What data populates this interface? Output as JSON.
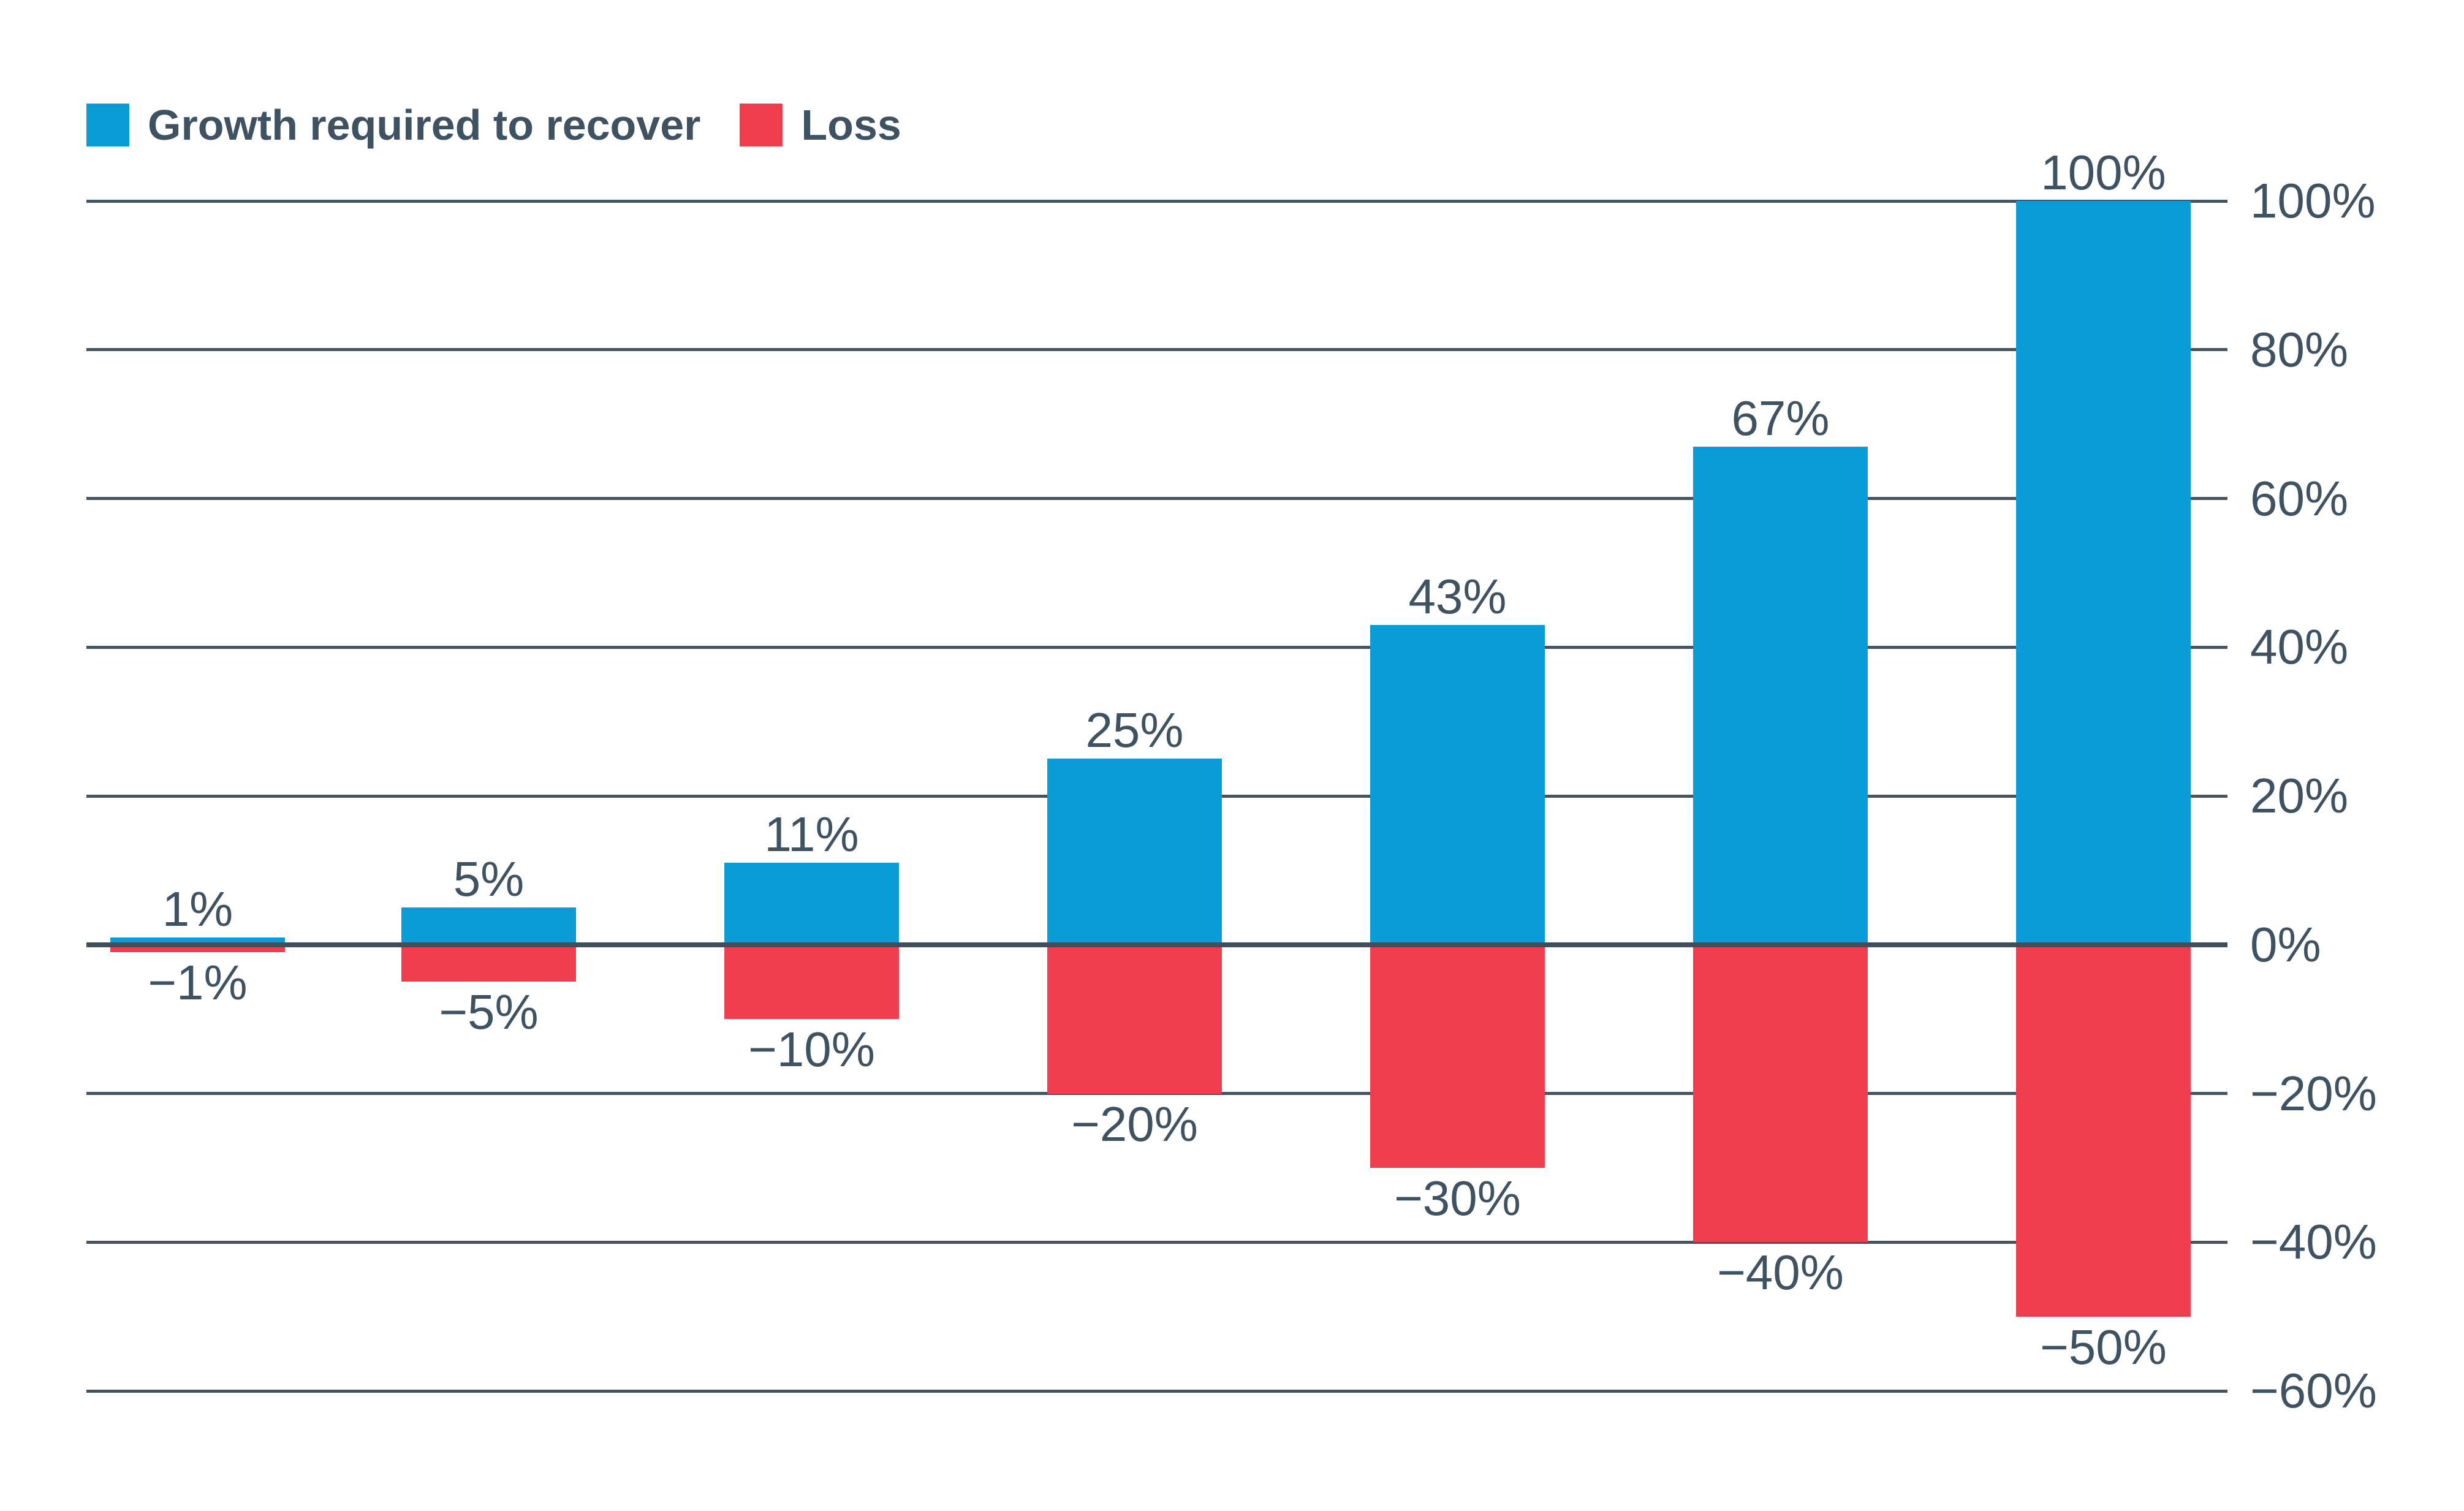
{
  "legend": {
    "items": [
      {
        "label": "Growth required to recover",
        "color": "#0b9cd8"
      },
      {
        "label": "Loss",
        "color": "#ee3d4c"
      }
    ]
  },
  "colors": {
    "growth_blue": "#0b9cd8",
    "loss_red": "#ee3d4c",
    "text": "#3e5262",
    "gridline": "#45545f",
    "zero_line": "#3e4e5b",
    "background": "#ffffff"
  },
  "chart_data": {
    "type": "bar",
    "title": "",
    "xlabel": "",
    "ylabel": "",
    "grid": true,
    "legend_position": "top-left",
    "ylim": [
      -60,
      100
    ],
    "categories": [
      "−1%",
      "−5%",
      "−10%",
      "−20%",
      "−30%",
      "−40%",
      "−50%"
    ],
    "series": [
      {
        "name": "Growth required to recover",
        "color": "#0b9cd8",
        "values": [
          1,
          5,
          11,
          25,
          43,
          67,
          100
        ],
        "labels": [
          "1%",
          "5%",
          "11%",
          "25%",
          "43%",
          "67%",
          "100%"
        ]
      },
      {
        "name": "Loss",
        "color": "#ee3d4c",
        "values": [
          -1,
          -5,
          -10,
          -20,
          -30,
          -40,
          -50
        ],
        "labels": [
          "−1%",
          "−5%",
          "−10%",
          "−20%",
          "−30%",
          "−40%",
          "−50%"
        ]
      }
    ],
    "y_axis": {
      "side": "right",
      "ticks": [
        {
          "value": 100,
          "label": "100%"
        },
        {
          "value": 80,
          "label": "80%"
        },
        {
          "value": 60,
          "label": "60%"
        },
        {
          "value": 40,
          "label": "40%"
        },
        {
          "value": 20,
          "label": "20%"
        },
        {
          "value": 0,
          "label": "0%"
        },
        {
          "value": -20,
          "label": "−20%"
        },
        {
          "value": -40,
          "label": "−40%"
        },
        {
          "value": -60,
          "label": "−60%"
        }
      ]
    }
  }
}
